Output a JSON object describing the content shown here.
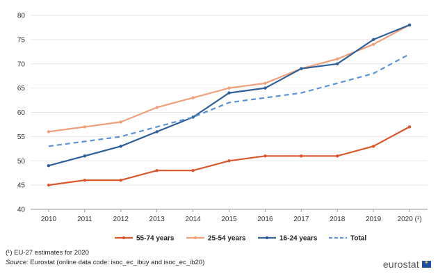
{
  "chart_data": {
    "type": "line",
    "categories": [
      "2010",
      "2011",
      "2012",
      "2013",
      "2014",
      "2015",
      "2016",
      "2017",
      "2018",
      "2019",
      "2020 (¹)"
    ],
    "ylim": [
      40,
      80
    ],
    "yticks": [
      40,
      45,
      50,
      55,
      60,
      65,
      70,
      75,
      80
    ],
    "grid": "horizontal",
    "legend_position": "bottom",
    "series": [
      {
        "name": "55-74 years",
        "color": "#d9572b",
        "dashed": false,
        "values": [
          45,
          46,
          46,
          48,
          48,
          50,
          51,
          51,
          51,
          53,
          57
        ]
      },
      {
        "name": "25-54 years",
        "color": "#f0a07a",
        "dashed": false,
        "values": [
          56,
          57,
          58,
          61,
          63,
          65,
          66,
          69,
          71,
          74,
          78
        ]
      },
      {
        "name": "16-24 years",
        "color": "#2d5f99",
        "dashed": false,
        "values": [
          49,
          51,
          53,
          56,
          59,
          64,
          65,
          69,
          70,
          75,
          78
        ]
      },
      {
        "name": "Total",
        "color": "#5b93d3",
        "dashed": true,
        "values": [
          53,
          54,
          55,
          57,
          59,
          62,
          63,
          64,
          66,
          68,
          72
        ]
      }
    ]
  },
  "footnotes": {
    "note": "(¹) EU-27 estimates for 2020",
    "source_prefix": "Source:",
    "source_text": " Eurostat (online data code: isoc_ec_ibuy and isoc_ec_ib20)"
  },
  "brand": {
    "name": "eurostat",
    "icon": "eu-flag-icon"
  }
}
